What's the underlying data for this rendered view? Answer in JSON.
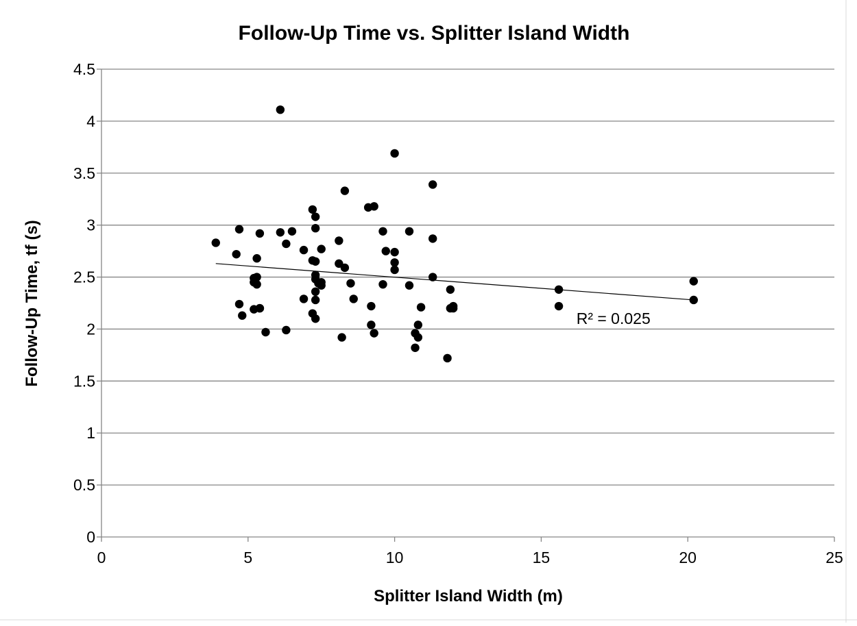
{
  "chart_data": {
    "type": "scatter",
    "title": "Follow-Up Time vs. Splitter Island Width",
    "xlabel": "Splitter Island Width (m)",
    "ylabel": "Follow-Up Time, tf (s)",
    "xlim": [
      0,
      25
    ],
    "ylim": [
      0,
      4.5
    ],
    "x_ticks": [
      "0",
      "5",
      "10",
      "15",
      "20",
      "25"
    ],
    "y_ticks": [
      "0",
      "0.5",
      "1",
      "1.5",
      "2",
      "2.5",
      "3",
      "3.5",
      "4",
      "4.5"
    ],
    "grid": "horizontal",
    "legend": "none",
    "marker_color": "#000000",
    "trendline": {
      "type": "linear",
      "x": [
        3.9,
        20.2
      ],
      "y": [
        2.63,
        2.28
      ],
      "label": "R² = 0.025"
    },
    "points": [
      {
        "x": 3.9,
        "y": 2.83
      },
      {
        "x": 4.6,
        "y": 2.72
      },
      {
        "x": 4.7,
        "y": 2.96
      },
      {
        "x": 4.7,
        "y": 2.24
      },
      {
        "x": 4.8,
        "y": 2.13
      },
      {
        "x": 5.2,
        "y": 2.19
      },
      {
        "x": 5.2,
        "y": 2.49
      },
      {
        "x": 5.2,
        "y": 2.45
      },
      {
        "x": 5.3,
        "y": 2.68
      },
      {
        "x": 5.3,
        "y": 2.5
      },
      {
        "x": 5.3,
        "y": 2.43
      },
      {
        "x": 5.4,
        "y": 2.2
      },
      {
        "x": 5.4,
        "y": 2.2
      },
      {
        "x": 5.4,
        "y": 2.92
      },
      {
        "x": 5.6,
        "y": 1.97
      },
      {
        "x": 6.1,
        "y": 4.11
      },
      {
        "x": 6.1,
        "y": 2.93
      },
      {
        "x": 6.3,
        "y": 2.82
      },
      {
        "x": 6.3,
        "y": 1.99
      },
      {
        "x": 6.5,
        "y": 2.94
      },
      {
        "x": 6.9,
        "y": 2.76
      },
      {
        "x": 6.9,
        "y": 2.29
      },
      {
        "x": 7.2,
        "y": 2.15
      },
      {
        "x": 7.2,
        "y": 2.66
      },
      {
        "x": 7.2,
        "y": 3.15
      },
      {
        "x": 7.3,
        "y": 3.08
      },
      {
        "x": 7.3,
        "y": 2.97
      },
      {
        "x": 7.3,
        "y": 2.65
      },
      {
        "x": 7.3,
        "y": 2.52
      },
      {
        "x": 7.3,
        "y": 2.48
      },
      {
        "x": 7.3,
        "y": 2.36
      },
      {
        "x": 7.3,
        "y": 2.28
      },
      {
        "x": 7.3,
        "y": 2.1
      },
      {
        "x": 7.4,
        "y": 2.44
      },
      {
        "x": 7.5,
        "y": 2.45
      },
      {
        "x": 7.5,
        "y": 2.42
      },
      {
        "x": 7.5,
        "y": 2.77
      },
      {
        "x": 8.1,
        "y": 2.85
      },
      {
        "x": 8.1,
        "y": 2.63
      },
      {
        "x": 8.2,
        "y": 1.92
      },
      {
        "x": 8.3,
        "y": 3.33
      },
      {
        "x": 8.3,
        "y": 2.59
      },
      {
        "x": 8.5,
        "y": 2.44
      },
      {
        "x": 8.6,
        "y": 2.29
      },
      {
        "x": 9.1,
        "y": 3.17
      },
      {
        "x": 9.2,
        "y": 2.22
      },
      {
        "x": 9.2,
        "y": 2.04
      },
      {
        "x": 9.3,
        "y": 3.18
      },
      {
        "x": 9.3,
        "y": 1.96
      },
      {
        "x": 9.6,
        "y": 2.94
      },
      {
        "x": 9.6,
        "y": 2.43
      },
      {
        "x": 9.7,
        "y": 2.75
      },
      {
        "x": 10.0,
        "y": 3.69
      },
      {
        "x": 10.0,
        "y": 2.74
      },
      {
        "x": 10.0,
        "y": 2.64
      },
      {
        "x": 10.0,
        "y": 2.57
      },
      {
        "x": 10.5,
        "y": 2.94
      },
      {
        "x": 10.5,
        "y": 2.42
      },
      {
        "x": 10.7,
        "y": 1.96
      },
      {
        "x": 10.7,
        "y": 1.82
      },
      {
        "x": 10.8,
        "y": 2.04
      },
      {
        "x": 10.8,
        "y": 1.92
      },
      {
        "x": 10.9,
        "y": 2.21
      },
      {
        "x": 11.3,
        "y": 3.39
      },
      {
        "x": 11.3,
        "y": 2.87
      },
      {
        "x": 11.3,
        "y": 2.5
      },
      {
        "x": 11.8,
        "y": 1.72
      },
      {
        "x": 11.9,
        "y": 2.38
      },
      {
        "x": 11.9,
        "y": 2.2
      },
      {
        "x": 12.0,
        "y": 2.22
      },
      {
        "x": 12.0,
        "y": 2.2
      },
      {
        "x": 15.6,
        "y": 2.38
      },
      {
        "x": 15.6,
        "y": 2.22
      },
      {
        "x": 20.2,
        "y": 2.46
      },
      {
        "x": 20.2,
        "y": 2.28
      }
    ]
  }
}
